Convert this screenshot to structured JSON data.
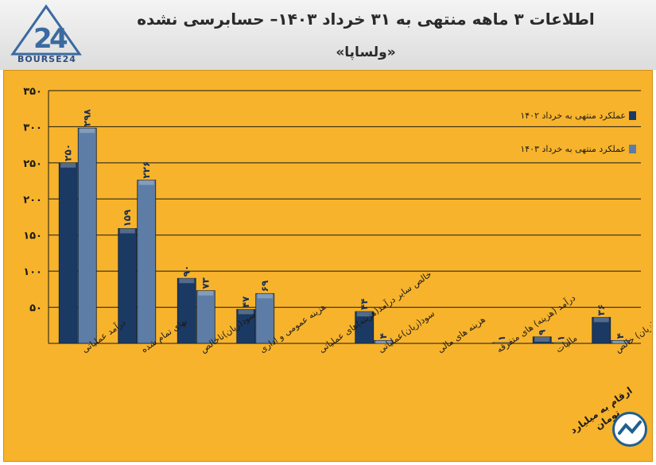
{
  "header": {
    "title": "اطلاعات ۳ ماهه منتهی به ۳۱ خرداد ۱۴۰۳– حسابرسی نشده",
    "subtitle": "«ولساپا»",
    "logo_text": "BOURSE24"
  },
  "chart_data": {
    "type": "bar",
    "categories": [
      "درآمد عملیاتی",
      "بهای تمام شده",
      "سود(زیان)ناخالص",
      "هزینه عمومی و اداری",
      "خالص سایر درآمد(هزینه)های عملیاتی",
      "سود(زیان)عملیاتی",
      "هزینه های مالی",
      "درآمد (هزینه) های متفرقه",
      "مالیات",
      "سود(زیان) خالص"
    ],
    "series": [
      {
        "name": "عملکرد منتهی به خرداد ۱۴۰۲",
        "color": "#1b3a63",
        "values": [
          250,
          159,
          90,
          47,
          0,
          44,
          0,
          0,
          9,
          36
        ],
        "labels": [
          "۲۵۰",
          "۱۵۹",
          "۹۰",
          "۴۷",
          "",
          "۴۴",
          "",
          "",
          "۹",
          "۳۶"
        ]
      },
      {
        "name": "عملکرد منتهی به خرداد ۱۴۰۳",
        "color": "#5d7da6",
        "values": [
          298,
          226,
          73,
          69,
          0,
          4,
          0,
          1,
          1,
          4
        ],
        "labels": [
          "۲۹۸",
          "۲۲۶",
          "۷۳",
          "۶۹",
          "",
          "۴",
          "",
          "۱",
          "۱",
          "۴"
        ]
      }
    ],
    "ylim": [
      0,
      350
    ],
    "yticks": [
      50,
      100,
      150,
      200,
      250,
      300,
      350
    ],
    "ytick_labels": [
      "۵۰",
      "۱۰۰",
      "۱۵۰",
      "۲۰۰",
      "۲۵۰",
      "۳۰۰",
      "۳۵۰"
    ],
    "grid": true,
    "legend_position": "top-right",
    "unit_note": "ارقام به میلیارد تومان"
  }
}
